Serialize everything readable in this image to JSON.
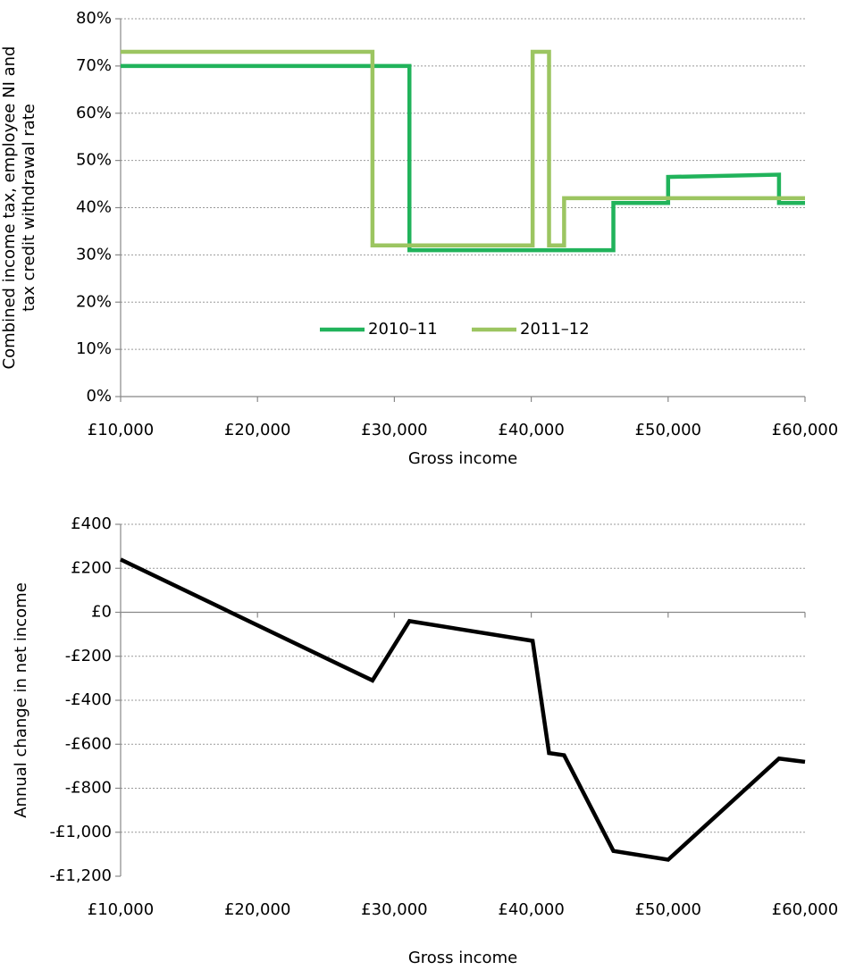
{
  "chart_data": [
    {
      "type": "line",
      "ylabel": [
        "Combined income tax, employee NI and",
        "tax credit withdrawal rate"
      ],
      "xlabel": "Gross income",
      "series": [
        {
          "name": "2010–11",
          "color": "#21b35b",
          "x": [
            10000,
            31100,
            31100,
            46000,
            46000,
            50000,
            50000,
            58100,
            58100,
            60000
          ],
          "values": [
            70,
            70,
            31,
            31,
            41,
            41,
            46.5,
            47,
            41,
            41
          ]
        },
        {
          "name": "2011–12",
          "color": "#9cc561",
          "x": [
            10000,
            28400,
            28400,
            40100,
            40100,
            41300,
            41300,
            42400,
            42400,
            60000
          ],
          "values": [
            73,
            73,
            32,
            32,
            73,
            73,
            32,
            32,
            42,
            42
          ]
        }
      ],
      "xlim": [
        10000,
        60000
      ],
      "xticks": [
        {
          "value": 10000,
          "label": "£10,000"
        },
        {
          "value": 20000,
          "label": "£20,000"
        },
        {
          "value": 30000,
          "label": "£30,000"
        },
        {
          "value": 40000,
          "label": "£40,000"
        },
        {
          "value": 50000,
          "label": "£50,000"
        },
        {
          "value": 60000,
          "label": "£60,000"
        }
      ],
      "ylim": [
        0,
        80
      ],
      "yticks": [
        {
          "value": 0,
          "label": "0%"
        },
        {
          "value": 10,
          "label": "10%"
        },
        {
          "value": 20,
          "label": "20%"
        },
        {
          "value": 30,
          "label": "30%"
        },
        {
          "value": 40,
          "label": "40%"
        },
        {
          "value": 50,
          "label": "50%"
        },
        {
          "value": 60,
          "label": "60%"
        },
        {
          "value": 70,
          "label": "70%"
        },
        {
          "value": 80,
          "label": "80%"
        }
      ],
      "grid": true,
      "legend": "lower center"
    },
    {
      "type": "line",
      "ylabel": [
        "Annual change in net income"
      ],
      "xlabel": "Gross income",
      "series": [
        {
          "color": "#000000",
          "x": [
            10000,
            28400,
            31100,
            40100,
            41300,
            42400,
            46000,
            50000,
            58100,
            60000
          ],
          "values": [
            240,
            -310,
            -40,
            -130,
            -640,
            -650,
            -1085,
            -1125,
            -665,
            -680
          ]
        }
      ],
      "xlim": [
        10000,
        60000
      ],
      "xticks": [
        {
          "value": 10000,
          "label": "£10,000"
        },
        {
          "value": 20000,
          "label": "£20,000"
        },
        {
          "value": 30000,
          "label": "£30,000"
        },
        {
          "value": 40000,
          "label": "£40,000"
        },
        {
          "value": 50000,
          "label": "£50,000"
        },
        {
          "value": 60000,
          "label": "£60,000"
        }
      ],
      "ylim": [
        -1200,
        400
      ],
      "yticks": [
        {
          "value": -1200,
          "label": "-£1,200"
        },
        {
          "value": -1000,
          "label": "-£1,000"
        },
        {
          "value": -800,
          "label": "-£800"
        },
        {
          "value": -600,
          "label": "-£600"
        },
        {
          "value": -400,
          "label": "-£400"
        },
        {
          "value": -200,
          "label": "-£200"
        },
        {
          "value": 0,
          "label": "£0"
        },
        {
          "value": 200,
          "label": "£200"
        },
        {
          "value": 400,
          "label": "£400"
        }
      ],
      "grid": true
    }
  ]
}
